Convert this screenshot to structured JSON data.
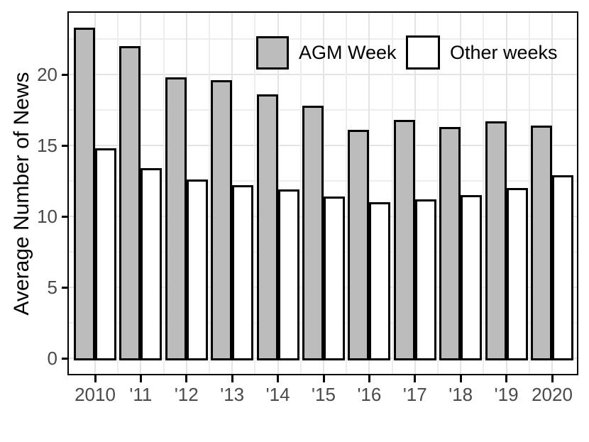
{
  "chart_data": {
    "type": "bar",
    "title": "",
    "xlabel": "",
    "ylabel": "Average Number of News",
    "categories": [
      "2010",
      "'11",
      "'12",
      "'13",
      "'14",
      "'15",
      "'16",
      "'17",
      "'18",
      "'19",
      "2020"
    ],
    "series": [
      {
        "name": "AGM Week",
        "color": "#bcbcbc",
        "values": [
          23.3,
          22.0,
          19.8,
          19.6,
          18.6,
          17.8,
          16.1,
          16.8,
          16.3,
          16.7,
          16.4
        ]
      },
      {
        "name": "Other weeks",
        "color": "#ffffff",
        "values": [
          14.8,
          13.4,
          12.6,
          12.2,
          11.9,
          11.4,
          11.0,
          11.2,
          11.5,
          12.0,
          12.9
        ]
      }
    ],
    "y_ticks": [
      0,
      5,
      10,
      15,
      20
    ],
    "y_tick_labels": [
      "0",
      "5",
      "10",
      "15",
      "20"
    ],
    "y_minor_ticks": [
      2.5,
      7.5,
      12.5,
      17.5,
      22.5
    ],
    "ylim": [
      0,
      24.4
    ],
    "grid": true,
    "legend_position": "top-inside",
    "colors": {
      "bar_stroke": "#000000",
      "panel_border": "#000000",
      "grid_major": "#e3e3e3",
      "grid_minor": "#ededed",
      "tick_label": "#4a4a4a",
      "axis_title": "#000000",
      "background": "#ffffff"
    }
  }
}
